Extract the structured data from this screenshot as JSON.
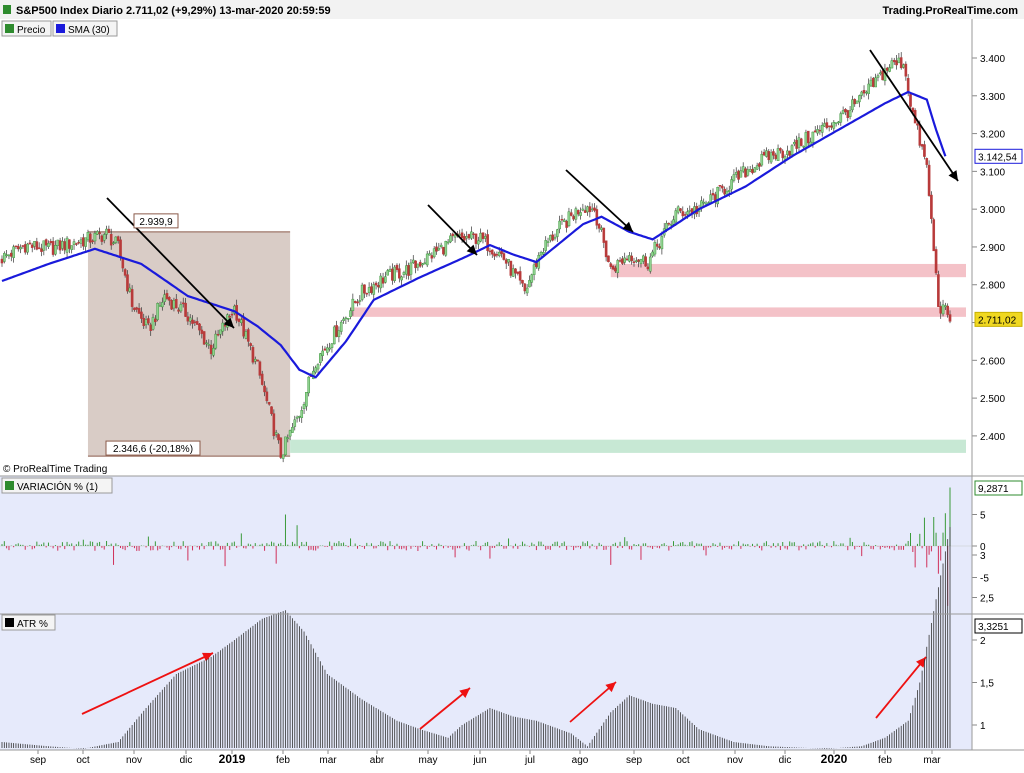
{
  "header": {
    "title": "S&P500 Index Diario 2.711,02 (+9,29%) 13-mar-2020 20:59:59",
    "source": "Trading.ProRealTime.com",
    "copyright": "© ProRealTime Trading"
  },
  "legends": {
    "price": {
      "label": "Precio",
      "swatch_color": "#2e8b2e"
    },
    "sma": {
      "label": "SMA (30)",
      "swatch_color": "#1a1adb"
    },
    "variacion": {
      "label": "VARIACIÓN % (1)",
      "swatch_color": "#2e8b2e"
    },
    "atr": {
      "label": "ATR %",
      "swatch_color": "#000000"
    }
  },
  "colors": {
    "up": "#3a9a3a",
    "down": "#d0305a",
    "sma": "#1a1adb",
    "panel_bg": "#e6eafb",
    "price_bg": "#ffffff",
    "box_fill": "#d7c9c3",
    "resistance": "#f4c2c8",
    "support": "#c7e8d4",
    "arrow_black": "#000000",
    "arrow_red": "#ee1111"
  },
  "chart_data": [
    {
      "type": "line",
      "title": "S&P500 Index Diario",
      "x_ticks": [
        "sep",
        "oct",
        "nov",
        "dic",
        "2019",
        "feb",
        "mar",
        "abr",
        "may",
        "jun",
        "jul",
        "ago",
        "sep",
        "oct",
        "nov",
        "dic",
        "2020",
        "feb",
        "mar"
      ],
      "y_ticks": [
        "3.400",
        "3.300",
        "3.200",
        "3.100",
        "3.000",
        "2.900",
        "2.800",
        "2.700",
        "2.600",
        "2.500",
        "2.400"
      ],
      "ylim": [
        2350,
        3430
      ],
      "series": [
        {
          "name": "Precio",
          "x": [
            0,
            10,
            20,
            30,
            40,
            45,
            50,
            56,
            63,
            70,
            80,
            90,
            100,
            110,
            120,
            128,
            135,
            140,
            147,
            155,
            165,
            175,
            185,
            195,
            205,
            215,
            225,
            232,
            240,
            250,
            255,
            262,
            270,
            278,
            290,
            300,
            310,
            320,
            330,
            340,
            350,
            360,
            368,
            375,
            382,
            388,
            392,
            398,
            403,
            408
          ],
          "values": [
            2870,
            2905,
            2895,
            2910,
            2925,
            2935,
            2900,
            2750,
            2680,
            2770,
            2720,
            2630,
            2740,
            2580,
            2350,
            2460,
            2600,
            2640,
            2710,
            2780,
            2820,
            2840,
            2880,
            2920,
            2925,
            2880,
            2780,
            2890,
            2950,
            3010,
            3000,
            2840,
            2880,
            2860,
            2990,
            3000,
            3050,
            3100,
            3140,
            3160,
            3200,
            3240,
            3280,
            3330,
            3380,
            3390,
            3250,
            3110,
            2750,
            2710
          ]
        },
        {
          "name": "SMA (30)",
          "x": [
            0,
            20,
            40,
            60,
            80,
            100,
            110,
            120,
            128,
            135,
            148,
            160,
            180,
            200,
            210,
            220,
            230,
            240,
            250,
            258,
            270,
            280,
            300,
            320,
            340,
            360,
            380,
            390,
            398,
            402,
            406
          ],
          "values": [
            2810,
            2855,
            2895,
            2855,
            2770,
            2730,
            2690,
            2640,
            2575,
            2555,
            2650,
            2760,
            2820,
            2875,
            2905,
            2880,
            2860,
            2910,
            2960,
            2980,
            2940,
            2920,
            3000,
            3060,
            3140,
            3210,
            3280,
            3310,
            3290,
            3210,
            3140
          ]
        }
      ],
      "annotations": [
        {
          "text": "2.939,9",
          "value": 2939.9
        },
        {
          "text": "2.346,6 (-20,18%)",
          "value": 2346.6
        },
        {
          "text": "3.142,54",
          "value": 3142.54,
          "color": "#1a1adb"
        },
        {
          "text": "2.711,02",
          "value": 2711.02,
          "color": "#f0d820"
        }
      ],
      "resistance_zones": [
        {
          "low": 2820,
          "high": 2855
        },
        {
          "low": 2715,
          "high": 2740
        }
      ],
      "support_zones": [
        {
          "low": 2355,
          "high": 2390
        }
      ],
      "drawdown_box": {
        "x_start": 37,
        "x_end": 124,
        "low": 2346.6,
        "high": 2939.9
      }
    },
    {
      "type": "bar",
      "title": "VARIACIÓN % (1)",
      "y_ticks": [
        "5",
        "0",
        "-5"
      ],
      "ylim": [
        -8,
        10
      ],
      "last_value_label": "9,2871",
      "highlights": [
        {
          "x": 0,
          "value": 0.3
        },
        {
          "x": 35,
          "value": 1.0
        },
        {
          "x": 48,
          "value": -3.0
        },
        {
          "x": 63,
          "value": 1.5
        },
        {
          "x": 80,
          "value": -2.3
        },
        {
          "x": 96,
          "value": -3.2
        },
        {
          "x": 103,
          "value": 2.0
        },
        {
          "x": 118,
          "value": -2.8
        },
        {
          "x": 122,
          "value": 5.0
        },
        {
          "x": 127,
          "value": 3.3
        },
        {
          "x": 150,
          "value": 1.2
        },
        {
          "x": 195,
          "value": -1.8
        },
        {
          "x": 210,
          "value": -2.0
        },
        {
          "x": 218,
          "value": 1.2
        },
        {
          "x": 262,
          "value": -3.0
        },
        {
          "x": 268,
          "value": 1.4
        },
        {
          "x": 275,
          "value": -2.2
        },
        {
          "x": 303,
          "value": -1.5
        },
        {
          "x": 365,
          "value": 1.3
        },
        {
          "x": 370,
          "value": -1.6
        },
        {
          "x": 393,
          "value": -3.4
        },
        {
          "x": 397,
          "value": 4.5
        },
        {
          "x": 398,
          "value": -3.4
        },
        {
          "x": 401,
          "value": 4.6
        },
        {
          "x": 403,
          "value": -4.4
        },
        {
          "x": 406,
          "value": 5.2
        },
        {
          "x": 407,
          "value": -9.5
        },
        {
          "x": 408,
          "value": 9.29
        }
      ]
    },
    {
      "type": "bar",
      "title": "ATR %",
      "y_ticks": [
        "3",
        "2,5",
        "2",
        "1,5",
        "1"
      ],
      "ylim": [
        0.5,
        3.5
      ],
      "last_value_label": "3,3251",
      "x": [
        0,
        20,
        35,
        50,
        62,
        75,
        90,
        100,
        112,
        122,
        130,
        140,
        155,
        170,
        180,
        192,
        198,
        210,
        220,
        230,
        245,
        252,
        262,
        270,
        280,
        290,
        300,
        315,
        330,
        355,
        370,
        380,
        390,
        395,
        400,
        405,
        408
      ],
      "values": [
        0.8,
        0.75,
        0.72,
        0.8,
        1.2,
        1.6,
        1.8,
        2.0,
        2.25,
        2.35,
        2.1,
        1.6,
        1.3,
        1.05,
        0.95,
        0.85,
        1.0,
        1.2,
        1.1,
        1.05,
        0.9,
        0.75,
        1.15,
        1.35,
        1.25,
        1.2,
        0.95,
        0.8,
        0.75,
        0.72,
        0.75,
        0.85,
        1.05,
        1.5,
        2.2,
        2.9,
        3.33
      ]
    }
  ]
}
